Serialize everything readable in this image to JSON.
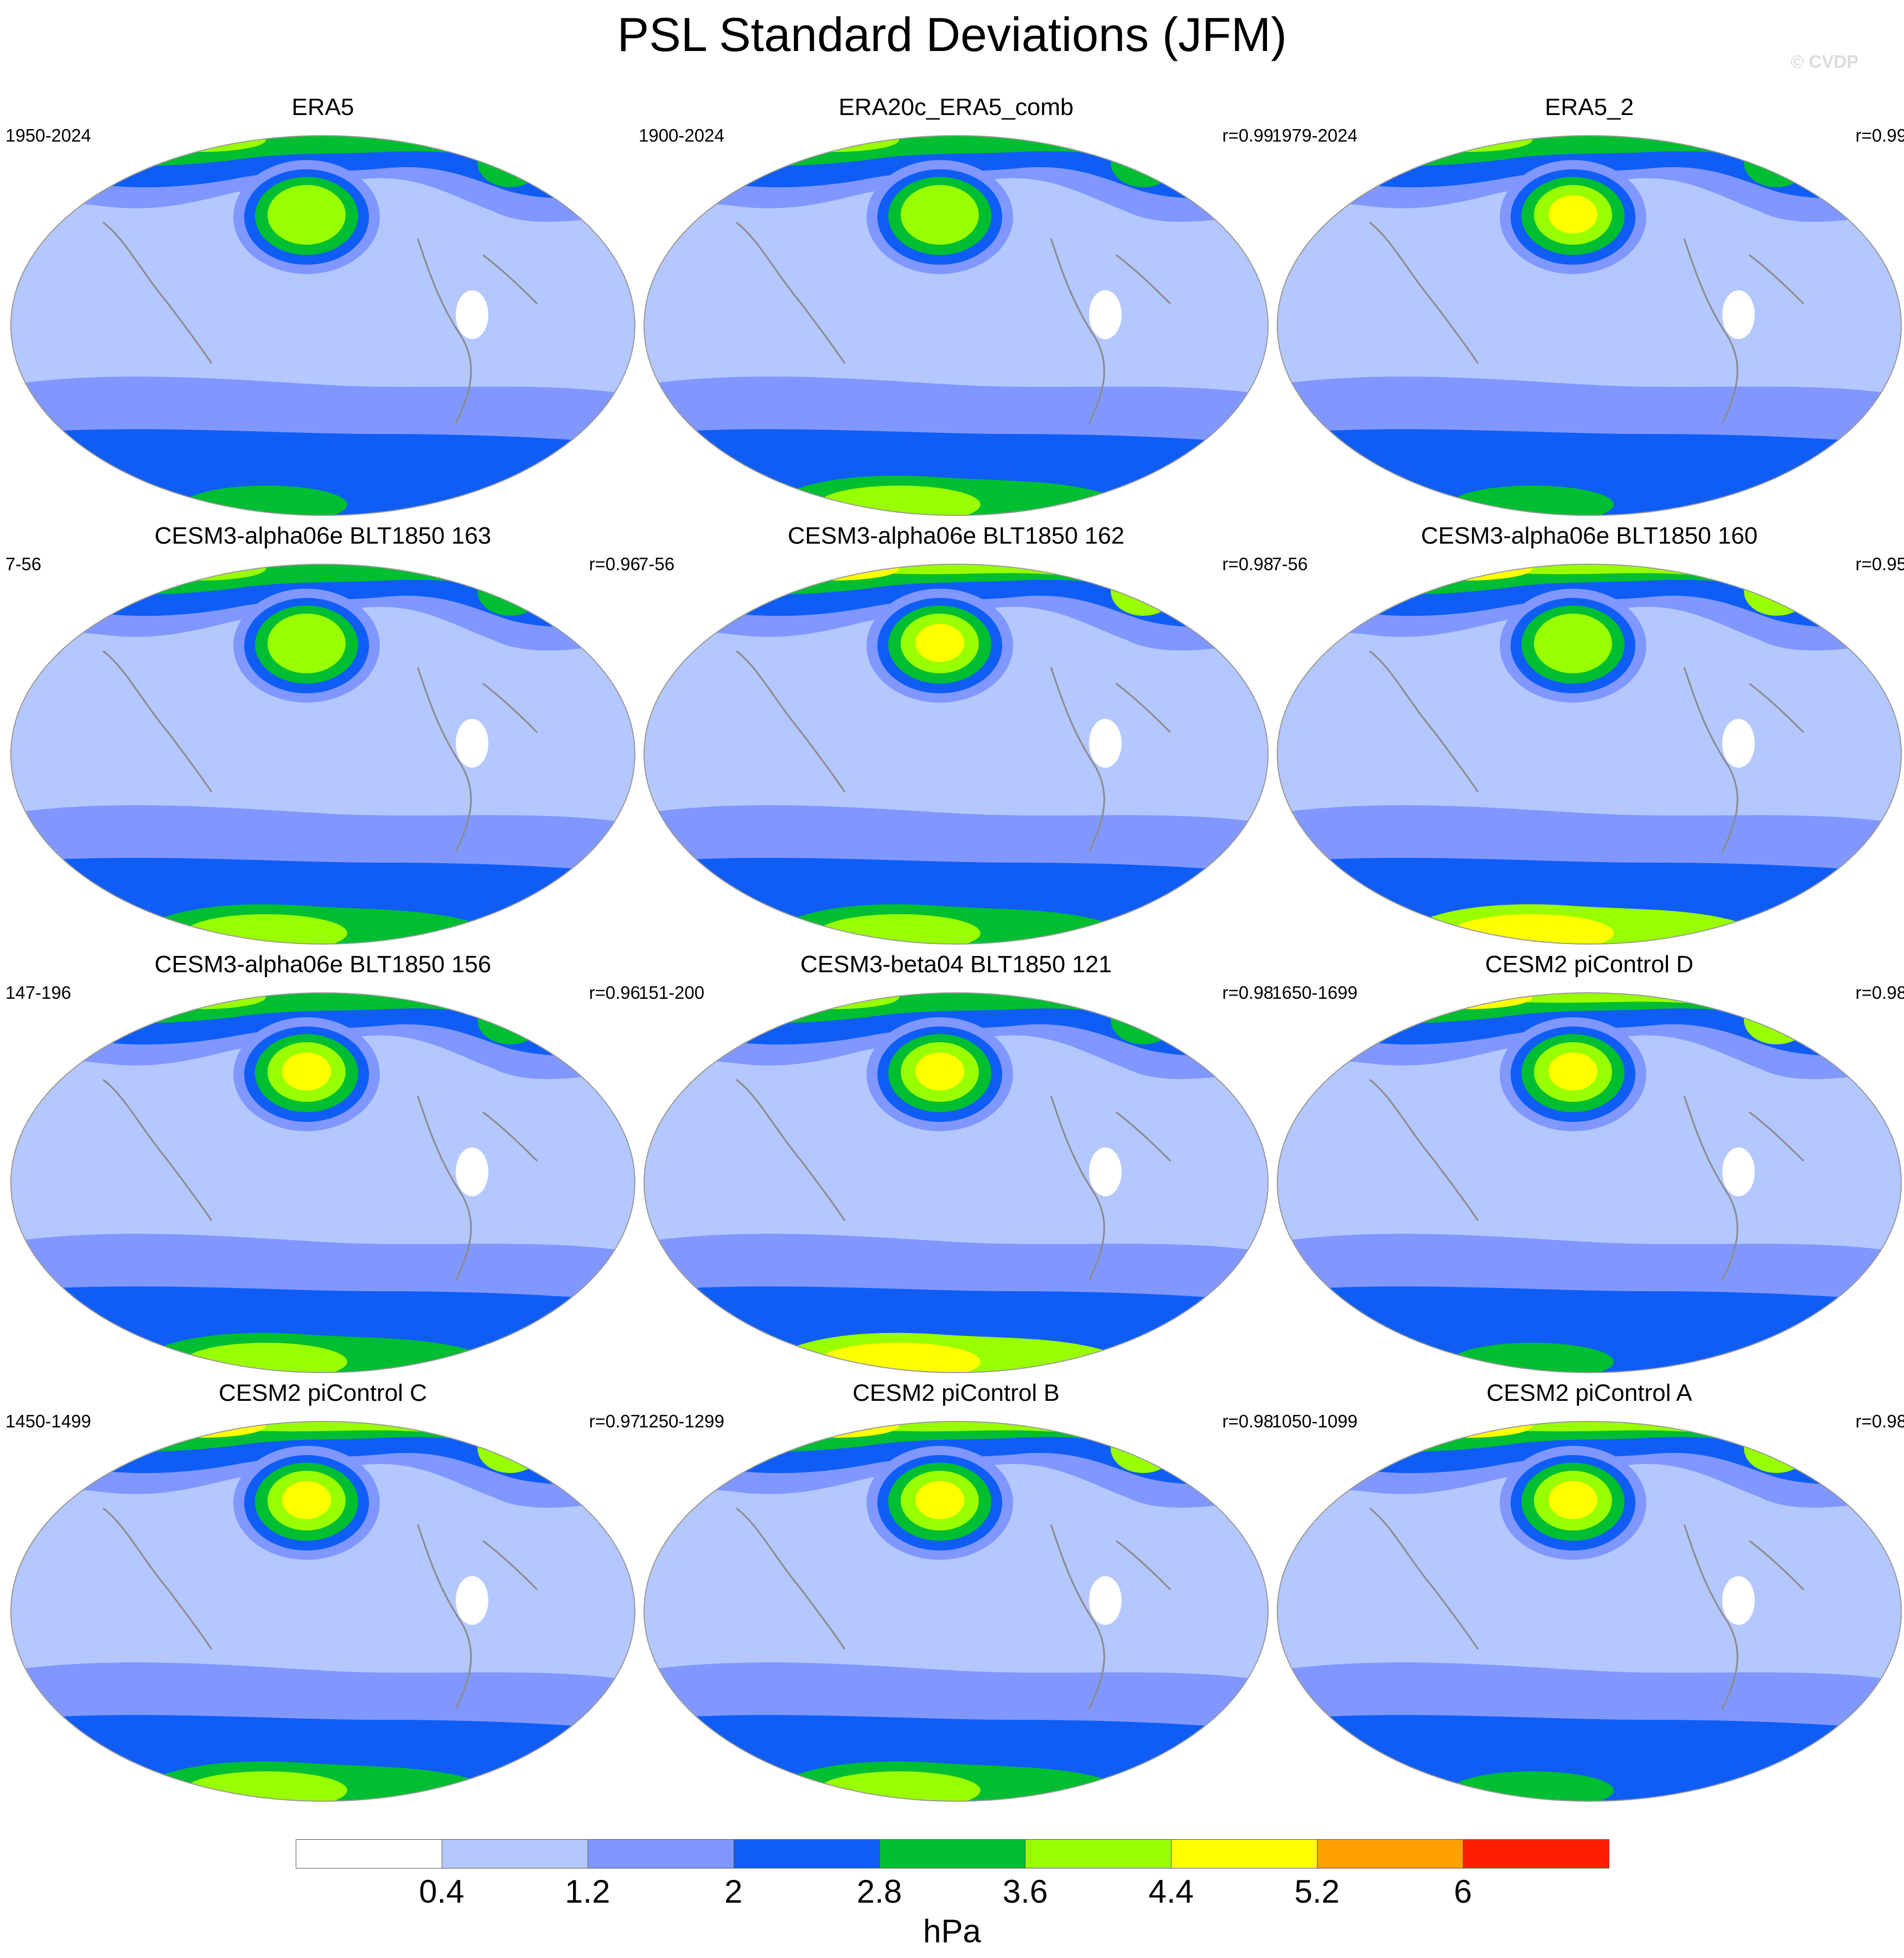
{
  "title": "PSL Standard Deviations (JFM)",
  "watermark": "© CVDP",
  "panels": [
    {
      "title": "ERA5",
      "years": "1950-2024",
      "corr": "",
      "levels": {
        "south": 3,
        "north": 5,
        "peak": 5,
        "ant": 3
      }
    },
    {
      "title": "ERA20c_ERA5_comb",
      "years": "1900-2024",
      "corr": "r=0.99",
      "levels": {
        "south": 3,
        "north": 5,
        "peak": 5,
        "ant": 4
      }
    },
    {
      "title": "ERA5_2",
      "years": "1979-2024",
      "corr": "r=0.99",
      "levels": {
        "south": 3,
        "north": 5,
        "peak": 6,
        "ant": 3
      }
    },
    {
      "title": "CESM3-alpha06e BLT1850 163",
      "years": "7-56",
      "corr": "r=0.96",
      "levels": {
        "south": 3,
        "north": 5,
        "peak": 5,
        "ant": 4
      }
    },
    {
      "title": "CESM3-alpha06e BLT1850 162",
      "years": "7-56",
      "corr": "r=0.98",
      "levels": {
        "south": 3,
        "north": 6,
        "peak": 6,
        "ant": 4
      }
    },
    {
      "title": "CESM3-alpha06e BLT1850 160",
      "years": "7-56",
      "corr": "r=0.95",
      "levels": {
        "south": 3,
        "north": 6,
        "peak": 5,
        "ant": 5
      }
    },
    {
      "title": "CESM3-alpha06e BLT1850 156",
      "years": "147-196",
      "corr": "r=0.96",
      "levels": {
        "south": 3,
        "north": 5,
        "peak": 6,
        "ant": 4
      }
    },
    {
      "title": "CESM3-beta04 BLT1850 121",
      "years": "151-200",
      "corr": "r=0.98",
      "levels": {
        "south": 3,
        "north": 5,
        "peak": 6,
        "ant": 5
      }
    },
    {
      "title": "CESM2 piControl D",
      "years": "1650-1699",
      "corr": "r=0.98",
      "levels": {
        "south": 3,
        "north": 6,
        "peak": 6,
        "ant": 3
      }
    },
    {
      "title": "CESM2 piControl C",
      "years": "1450-1499",
      "corr": "r=0.97",
      "levels": {
        "south": 3,
        "north": 6,
        "peak": 6,
        "ant": 4
      }
    },
    {
      "title": "CESM2 piControl B",
      "years": "1250-1299",
      "corr": "r=0.98",
      "levels": {
        "south": 3,
        "north": 6,
        "peak": 6,
        "ant": 4
      }
    },
    {
      "title": "CESM2 piControl A",
      "years": "1050-1099",
      "corr": "r=0.98",
      "levels": {
        "south": 3,
        "north": 6,
        "peak": 6,
        "ant": 3
      }
    }
  ],
  "colorbar": {
    "colors": [
      "#ffffff",
      "#b4c7ff",
      "#8097ff",
      "#0f5df5",
      "#00be32",
      "#99ff00",
      "#ffff00",
      "#ffa000",
      "#ff1e00"
    ],
    "labels": [
      "0.4",
      "1.2",
      "2",
      "2.8",
      "3.6",
      "4.4",
      "5.2",
      "6"
    ],
    "units": "hPa"
  }
}
